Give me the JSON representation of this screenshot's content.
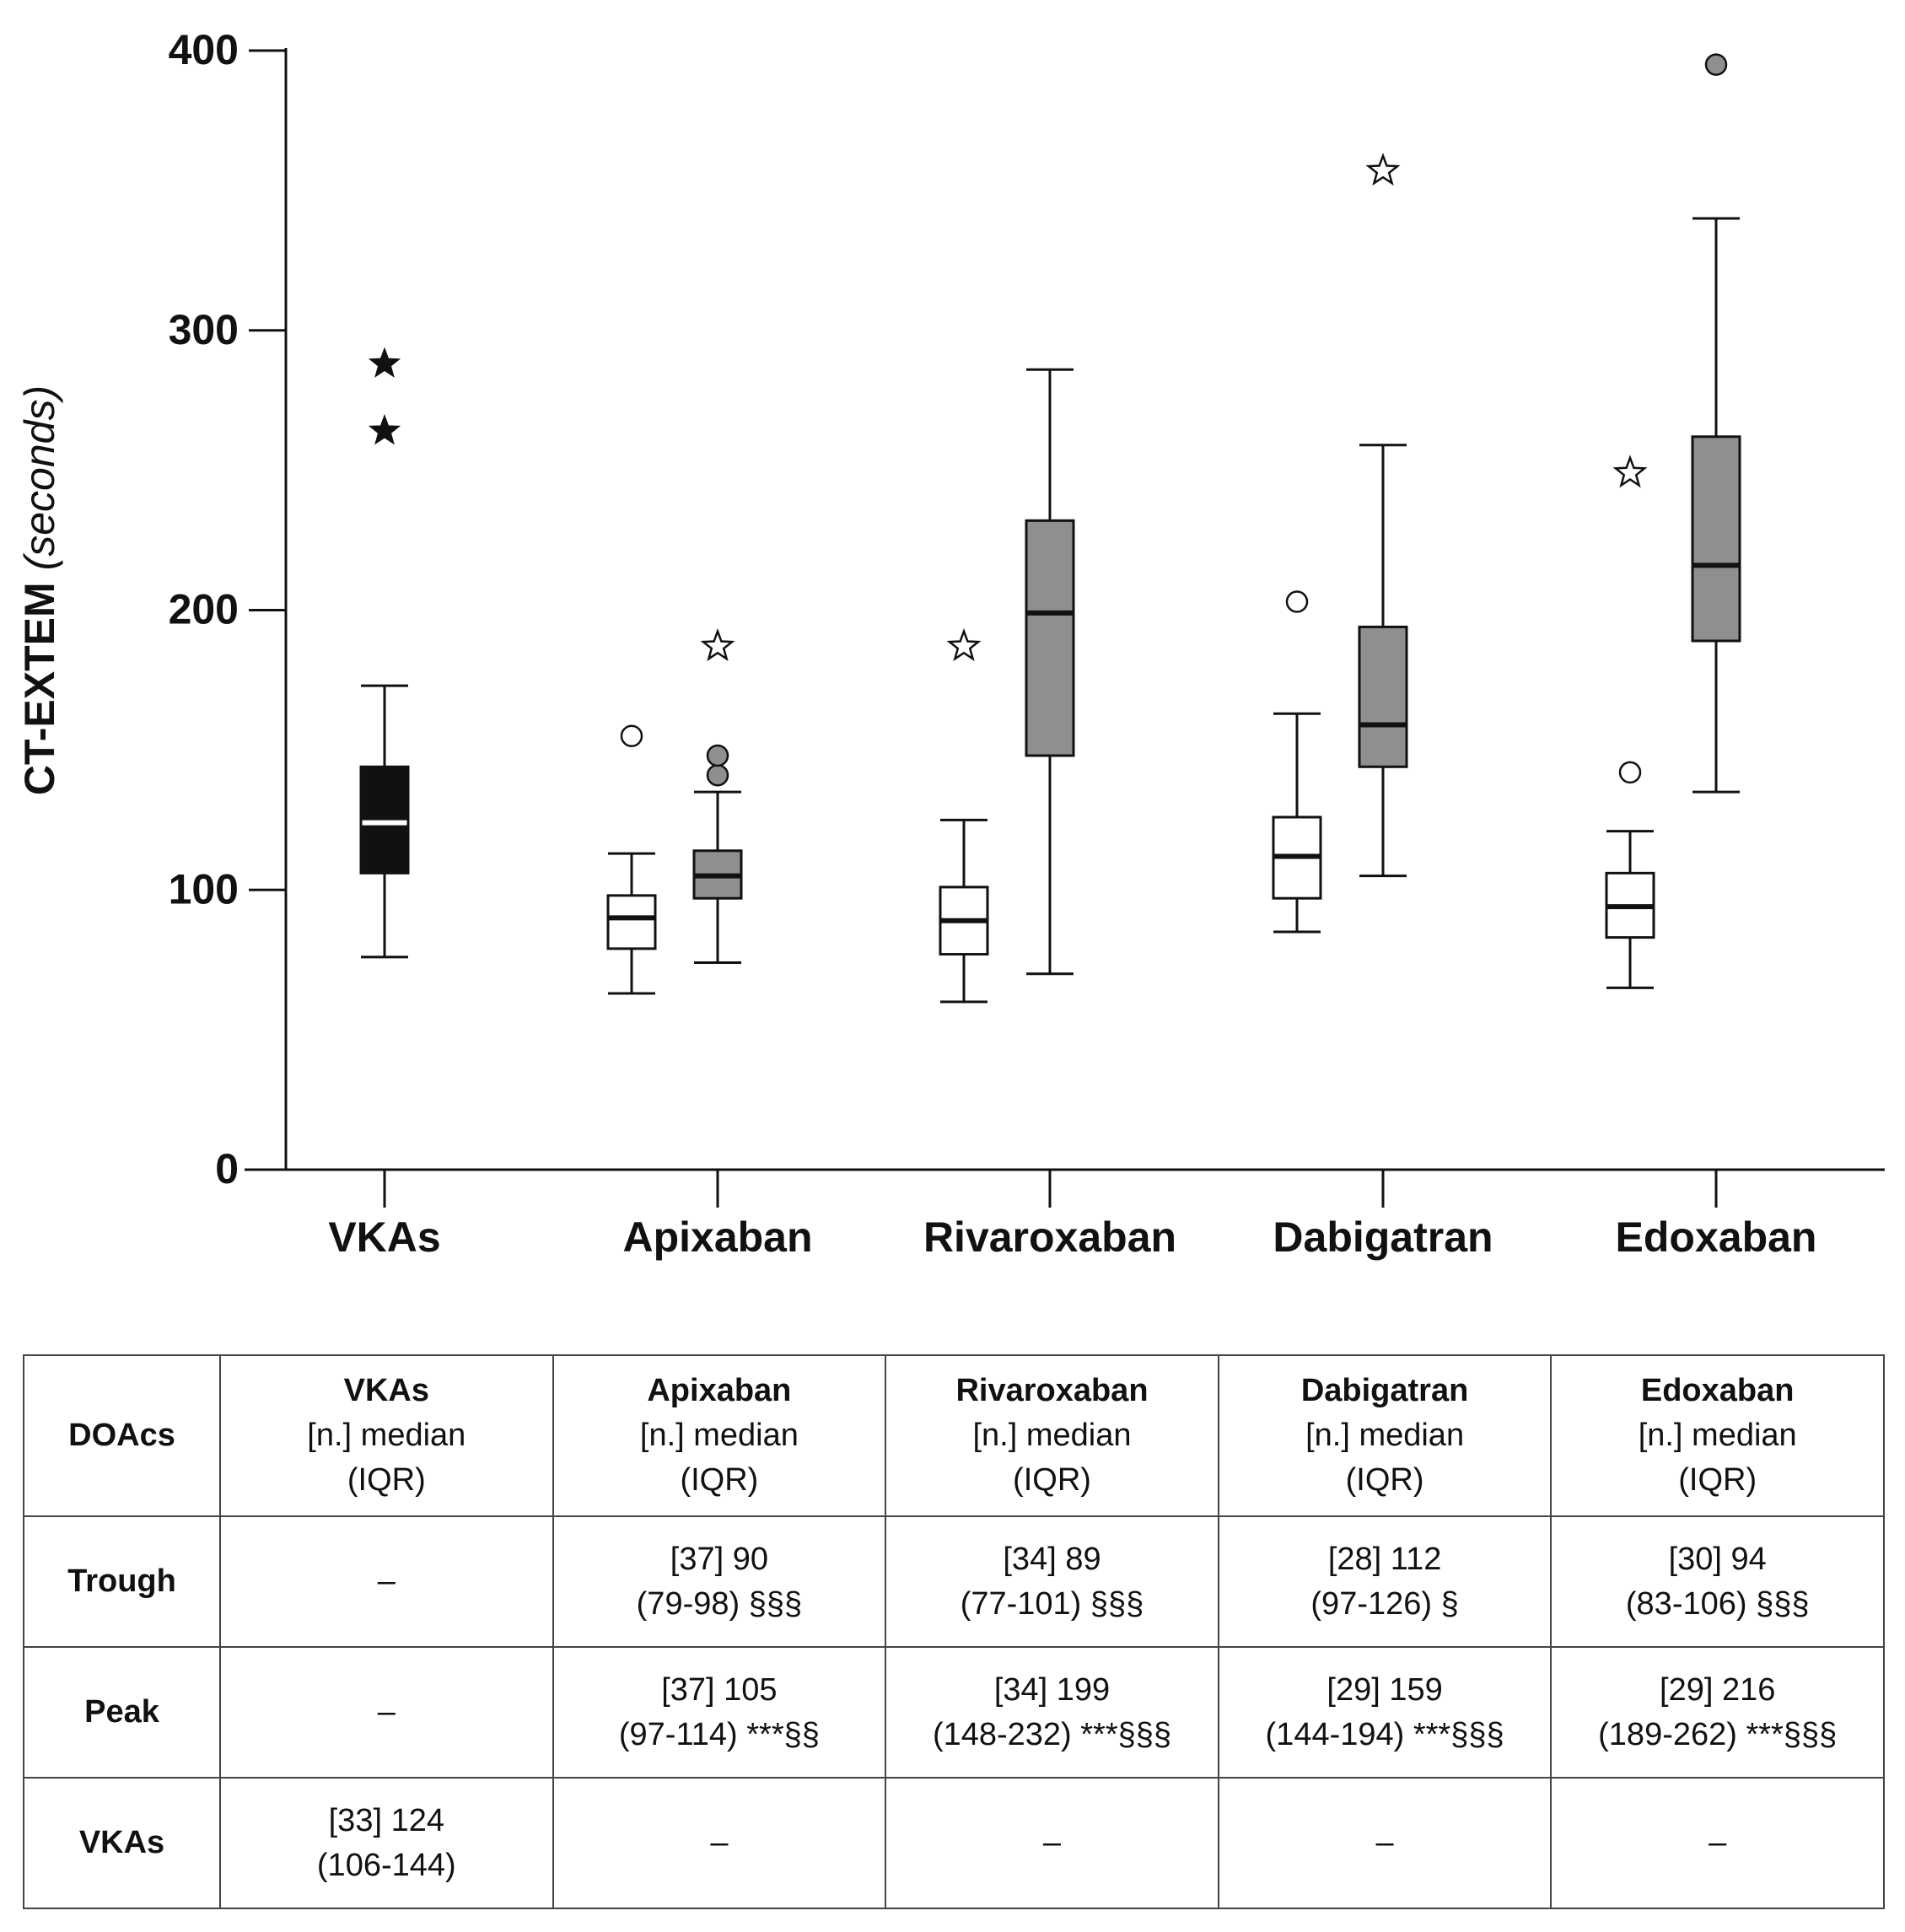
{
  "chart_data": {
    "type": "box",
    "ylabel": "CT-EXTEM",
    "ylabel_unit": "(seconds)",
    "ylim": [
      0,
      400
    ],
    "yticks": [
      0,
      100,
      200,
      300,
      400
    ],
    "categories": [
      "VKAs",
      "Apixaban",
      "Rivaroxaban",
      "Dabigatran",
      "Edoxaban"
    ],
    "series": [
      {
        "name": "VKAs",
        "category": "VKAs",
        "style": "black",
        "whisker_low": 76,
        "q1": 106,
        "median": 124,
        "q3": 144,
        "whisker_high": 173,
        "outliers": [],
        "extremes": [
          264,
          288
        ]
      },
      {
        "name": "Apixaban Trough",
        "category": "Apixaban",
        "style": "white",
        "whisker_low": 63,
        "q1": 79,
        "median": 90,
        "q3": 98,
        "whisker_high": 113,
        "outliers": [
          155
        ],
        "extremes": []
      },
      {
        "name": "Apixaban Peak",
        "category": "Apixaban",
        "style": "gray",
        "whisker_low": 74,
        "q1": 97,
        "median": 105,
        "q3": 114,
        "whisker_high": 135,
        "outliers": [
          141,
          148
        ],
        "extremes": [
          187
        ]
      },
      {
        "name": "Rivaroxaban Trough",
        "category": "Rivaroxaban",
        "style": "white",
        "whisker_low": 60,
        "q1": 77,
        "median": 89,
        "q3": 101,
        "whisker_high": 125,
        "outliers": [],
        "extremes": [
          187
        ]
      },
      {
        "name": "Rivaroxaban Peak",
        "category": "Rivaroxaban",
        "style": "gray",
        "whisker_low": 70,
        "q1": 148,
        "median": 199,
        "q3": 232,
        "whisker_high": 286,
        "outliers": [],
        "extremes": []
      },
      {
        "name": "Dabigatran Trough",
        "category": "Dabigatran",
        "style": "white",
        "whisker_low": 85,
        "q1": 97,
        "median": 112,
        "q3": 126,
        "whisker_high": 163,
        "outliers": [
          203
        ],
        "extremes": []
      },
      {
        "name": "Dabigatran Peak",
        "category": "Dabigatran",
        "style": "gray",
        "whisker_low": 105,
        "q1": 144,
        "median": 159,
        "q3": 194,
        "whisker_high": 259,
        "outliers": [],
        "extremes": [
          357
        ]
      },
      {
        "name": "Edoxaban Trough",
        "category": "Edoxaban",
        "style": "white",
        "whisker_low": 65,
        "q1": 83,
        "median": 94,
        "q3": 106,
        "whisker_high": 121,
        "outliers": [
          142
        ],
        "extremes": [
          249
        ]
      },
      {
        "name": "Edoxaban Peak",
        "category": "Edoxaban",
        "style": "gray",
        "whisker_low": 135,
        "q1": 189,
        "median": 216,
        "q3": 262,
        "whisker_high": 340,
        "outliers": [
          395
        ],
        "extremes": []
      }
    ]
  },
  "table": {
    "corner": "DOAcs",
    "columns": [
      {
        "name": "VKAs",
        "sub1": "[n.] median",
        "sub2": "(IQR)"
      },
      {
        "name": "Apixaban",
        "sub1": "[n.] median",
        "sub2": "(IQR)"
      },
      {
        "name": "Rivaroxaban",
        "sub1": "[n.] median",
        "sub2": "(IQR)"
      },
      {
        "name": "Dabigatran",
        "sub1": "[n.] median",
        "sub2": "(IQR)"
      },
      {
        "name": "Edoxaban",
        "sub1": "[n.] median",
        "sub2": "(IQR)"
      }
    ],
    "rows": [
      {
        "label": "Trough",
        "cells": [
          {
            "l1": "–",
            "l2": ""
          },
          {
            "l1": "[37] 90",
            "l2": "(79-98) §§§"
          },
          {
            "l1": "[34] 89",
            "l2": "(77-101) §§§"
          },
          {
            "l1": "[28] 112",
            "l2": "(97-126) §"
          },
          {
            "l1": "[30] 94",
            "l2": "(83-106) §§§"
          }
        ]
      },
      {
        "label": "Peak",
        "cells": [
          {
            "l1": "–",
            "l2": ""
          },
          {
            "l1": "[37] 105",
            "l2": "(97-114) ***§§"
          },
          {
            "l1": "[34] 199",
            "l2": "(148-232) ***§§§"
          },
          {
            "l1": "[29] 159",
            "l2": "(144-194) ***§§§"
          },
          {
            "l1": "[29] 216",
            "l2": "(189-262) ***§§§"
          }
        ]
      },
      {
        "label": "VKAs",
        "cells": [
          {
            "l1": "[33] 124",
            "l2": "(106-144)"
          },
          {
            "l1": "–",
            "l2": ""
          },
          {
            "l1": "–",
            "l2": ""
          },
          {
            "l1": "–",
            "l2": ""
          },
          {
            "l1": "–",
            "l2": ""
          }
        ]
      }
    ]
  }
}
